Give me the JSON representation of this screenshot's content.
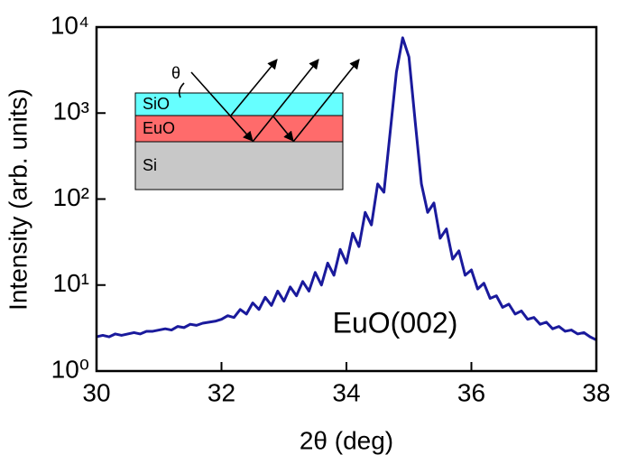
{
  "chart_data": {
    "type": "line",
    "x_label": "2θ (deg)",
    "y_label": "Intensity (arb. units)",
    "annotation": "EuO(002)",
    "inset": {
      "layers": [
        "SiO",
        "EuO",
        "Si"
      ],
      "angle_label": "θ"
    },
    "log_y": true,
    "xlim": [
      30,
      38
    ],
    "xticks": [
      30,
      32,
      34,
      36,
      38
    ],
    "ylim": [
      1,
      10000
    ],
    "yticks": [
      {
        "value": 1,
        "label": "10⁰"
      },
      {
        "value": 10,
        "label": "10¹"
      },
      {
        "value": 100,
        "label": "10²"
      },
      {
        "value": 1000,
        "label": "10³"
      },
      {
        "value": 10000,
        "label": "10⁴"
      }
    ],
    "x": [
      30.0,
      30.1,
      30.2,
      30.3,
      30.4,
      30.5,
      30.6,
      30.7,
      30.8,
      30.9,
      31.0,
      31.1,
      31.2,
      31.3,
      31.4,
      31.5,
      31.6,
      31.7,
      31.8,
      31.9,
      32.0,
      32.1,
      32.2,
      32.3,
      32.4,
      32.5,
      32.6,
      32.7,
      32.8,
      32.9,
      33.0,
      33.1,
      33.2,
      33.3,
      33.4,
      33.5,
      33.6,
      33.7,
      33.8,
      33.9,
      34.0,
      34.1,
      34.2,
      34.3,
      34.4,
      34.5,
      34.6,
      34.7,
      34.8,
      34.9,
      35.0,
      35.1,
      35.2,
      35.3,
      35.4,
      35.5,
      35.6,
      35.7,
      35.8,
      35.9,
      36.0,
      36.1,
      36.2,
      36.3,
      36.4,
      36.5,
      36.6,
      36.7,
      36.8,
      36.9,
      37.0,
      37.1,
      37.2,
      37.3,
      37.4,
      37.5,
      37.6,
      37.7,
      37.8,
      37.9,
      38.0
    ],
    "series": [
      {
        "color": "#1a1a9c",
        "values": [
          2.5,
          2.6,
          2.5,
          2.7,
          2.6,
          2.7,
          2.8,
          2.7,
          2.9,
          2.9,
          3.0,
          3.1,
          3.0,
          3.3,
          3.2,
          3.5,
          3.4,
          3.6,
          3.7,
          3.8,
          4.0,
          4.4,
          4.2,
          5.2,
          4.6,
          6.2,
          5.2,
          7.2,
          5.8,
          8.5,
          6.5,
          9.5,
          7.5,
          11,
          8.5,
          14,
          10,
          18,
          13,
          26,
          18,
          40,
          28,
          70,
          50,
          150,
          120,
          600,
          3000,
          7500,
          4500,
          800,
          150,
          70,
          90,
          35,
          45,
          20,
          25,
          13,
          15,
          9,
          10.5,
          7,
          7.5,
          5.5,
          6,
          4.6,
          5,
          4,
          4.2,
          3.5,
          3.7,
          3.1,
          3.3,
          2.9,
          3.0,
          2.7,
          2.8,
          2.5,
          2.3
        ]
      }
    ]
  }
}
